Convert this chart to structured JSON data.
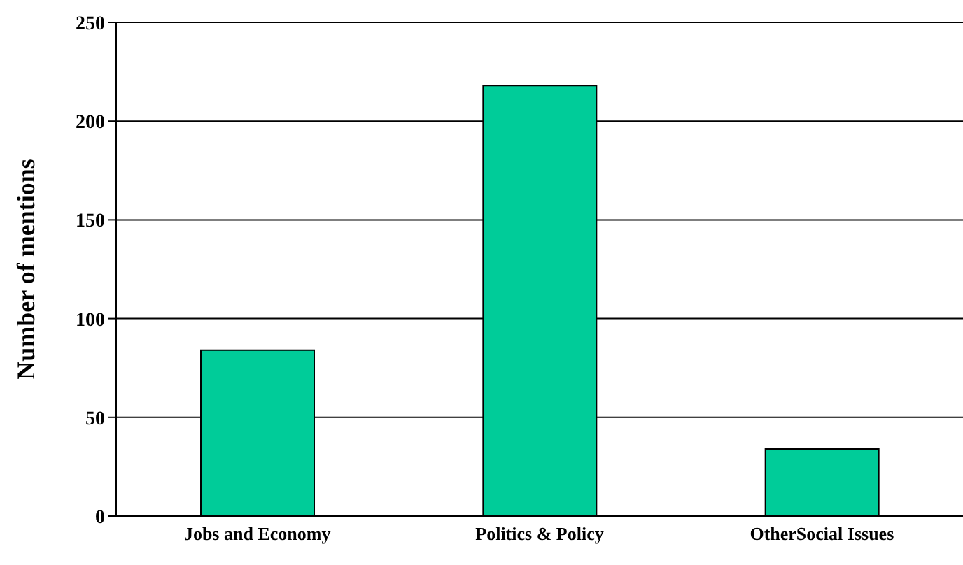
{
  "chart_data": {
    "type": "bar",
    "ylabel": "Number of mentions",
    "categories": [
      "Jobs and Economy",
      "Politics & Policy",
      "OtherSocial Issues"
    ],
    "values": [
      84,
      218,
      34
    ],
    "color": "#00cc99",
    "ylim": [
      0,
      250
    ],
    "yticks": [
      0,
      50,
      100,
      150,
      200,
      250
    ],
    "grid": "y",
    "legend": false
  }
}
